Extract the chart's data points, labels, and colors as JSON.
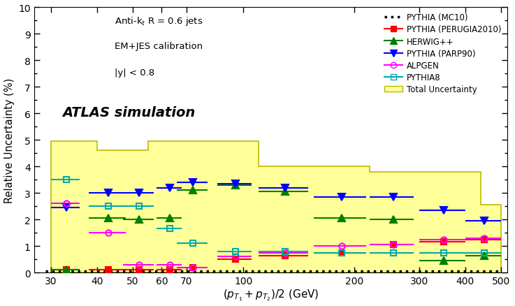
{
  "xlabel": "$(p_{T_1}+p_{T_2})/2$ (GeV)",
  "ylabel": "Relative Uncertainty (%)",
  "xlim": [
    27,
    520
  ],
  "ylim": [
    0,
    10
  ],
  "xticks": [
    30,
    40,
    50,
    60,
    70,
    100,
    200,
    300,
    400,
    500
  ],
  "yticks": [
    0,
    1,
    2,
    3,
    4,
    5,
    6,
    7,
    8,
    9,
    10
  ],
  "total_uncertainty_steps": {
    "edges": [
      30,
      40,
      46,
      55,
      65,
      80,
      110,
      160,
      220,
      290,
      440,
      500
    ],
    "heights": [
      4.95,
      4.6,
      4.6,
      4.95,
      4.95,
      4.95,
      4.0,
      4.0,
      3.8,
      3.8,
      2.55
    ]
  },
  "pythia_mc10": {
    "x": [
      29,
      500
    ],
    "y": [
      0.05,
      0.05
    ],
    "color": "#000000",
    "linestyle": "dotted",
    "linewidth": 2.5,
    "label": "PYTHIA (MC10)"
  },
  "pythia_perugia": {
    "x": [
      33,
      43,
      52,
      63,
      73,
      95,
      130,
      185,
      255,
      350,
      450
    ],
    "y": [
      0.1,
      0.1,
      0.1,
      0.1,
      0.2,
      0.5,
      0.65,
      0.75,
      1.05,
      1.15,
      1.25
    ],
    "xerr": [
      3,
      5,
      5,
      5,
      7,
      10,
      20,
      30,
      35,
      50,
      50
    ],
    "color": "#ff0000",
    "marker": "s",
    "markersize": 6,
    "label": "PYTHIA (PERUGIA2010)",
    "fillstyle": "full"
  },
  "herwig": {
    "x": [
      33,
      43,
      52,
      63,
      73,
      95,
      130,
      185,
      255,
      350,
      450
    ],
    "y": [
      0.1,
      2.05,
      2.0,
      2.05,
      3.1,
      3.3,
      3.05,
      2.05,
      2.0,
      0.45,
      0.65
    ],
    "xerr": [
      3,
      5,
      5,
      5,
      7,
      10,
      20,
      30,
      35,
      50,
      50
    ],
    "color": "#008000",
    "marker": "^",
    "markersize": 7,
    "label": "HERWIG++",
    "fillstyle": "full"
  },
  "pythia_parp90": {
    "x": [
      33,
      43,
      52,
      63,
      73,
      95,
      130,
      185,
      255,
      350,
      450
    ],
    "y": [
      2.45,
      3.0,
      3.0,
      3.2,
      3.4,
      3.35,
      3.2,
      2.85,
      2.85,
      2.35,
      1.95
    ],
    "xerr": [
      3,
      5,
      5,
      5,
      7,
      10,
      20,
      30,
      35,
      50,
      50
    ],
    "color": "#0000ff",
    "marker": "v",
    "markersize": 7,
    "label": "PYTHIA (PARP90)",
    "fillstyle": "full"
  },
  "alpgen": {
    "x": [
      33,
      43,
      52,
      63,
      73,
      95,
      130,
      185,
      255,
      350,
      450
    ],
    "y": [
      2.6,
      1.5,
      0.3,
      0.3,
      0.2,
      0.6,
      0.75,
      1.0,
      1.05,
      1.25,
      1.3
    ],
    "xerr": [
      3,
      5,
      5,
      5,
      7,
      10,
      20,
      30,
      35,
      50,
      50
    ],
    "color": "#ff00ff",
    "marker": "o",
    "markersize": 6,
    "label": "ALPGEN",
    "fillstyle": "none"
  },
  "pythia8": {
    "x": [
      33,
      43,
      52,
      63,
      73,
      95,
      130,
      185,
      255,
      350,
      450
    ],
    "y": [
      3.5,
      2.5,
      2.5,
      1.65,
      1.1,
      0.8,
      0.8,
      0.75,
      0.75,
      0.75,
      0.75
    ],
    "xerr": [
      3,
      5,
      5,
      5,
      7,
      10,
      20,
      30,
      35,
      50,
      50
    ],
    "color": "#00aaaa",
    "marker": "s",
    "markersize": 6,
    "label": "PYTHIA8",
    "fillstyle": "none"
  },
  "total_uncertainty_color": "#ffff99",
  "total_uncertainty_edge": "#bbbb00",
  "annotation_antikt": "Anti-k$_t$ R = 0.6 jets",
  "annotation_emjes": "EM+JES calibration",
  "annotation_y": "|y| < 0.8",
  "annotation_atlas": "ATLAS simulation"
}
